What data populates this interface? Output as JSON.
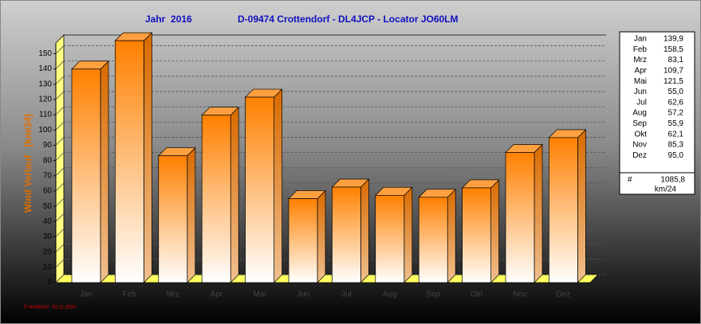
{
  "chart_data": {
    "type": "bar",
    "title": "Jahr  2016",
    "subtitle": "D-09474 Crottendorf - DL4JCP - Locator JO60LM",
    "y_label": "Wind Verlauf   (km/24)",
    "footer": "© WsWin32  03.11.2020",
    "categories": [
      "Jan",
      "Feb",
      "Mrz",
      "Apr",
      "Mai",
      "Jun",
      "Jul",
      "Aug",
      "Sep",
      "Okt",
      "Nov",
      "Dez"
    ],
    "values": [
      139.9,
      158.5,
      83.1,
      109.7,
      121.5,
      55.0,
      62.6,
      57.2,
      55.9,
      62.1,
      85.3,
      95.0
    ],
    "value_labels": [
      "139,9",
      "158,5",
      "83,1",
      "109,7",
      "121,5",
      "55,0",
      "62,6",
      "57,2",
      "55,9",
      "62,1",
      "85,3",
      "95,0"
    ],
    "total": 1085.8,
    "total_label": "1085,8",
    "total_symbol": "#",
    "total_unit": "km/24",
    "color": "#ff8000",
    "ylim": [
      0,
      157
    ],
    "yticks": [
      0,
      10,
      20,
      30,
      40,
      50,
      60,
      70,
      80,
      90,
      100,
      110,
      120,
      130,
      140,
      150
    ],
    "grid": true
  }
}
